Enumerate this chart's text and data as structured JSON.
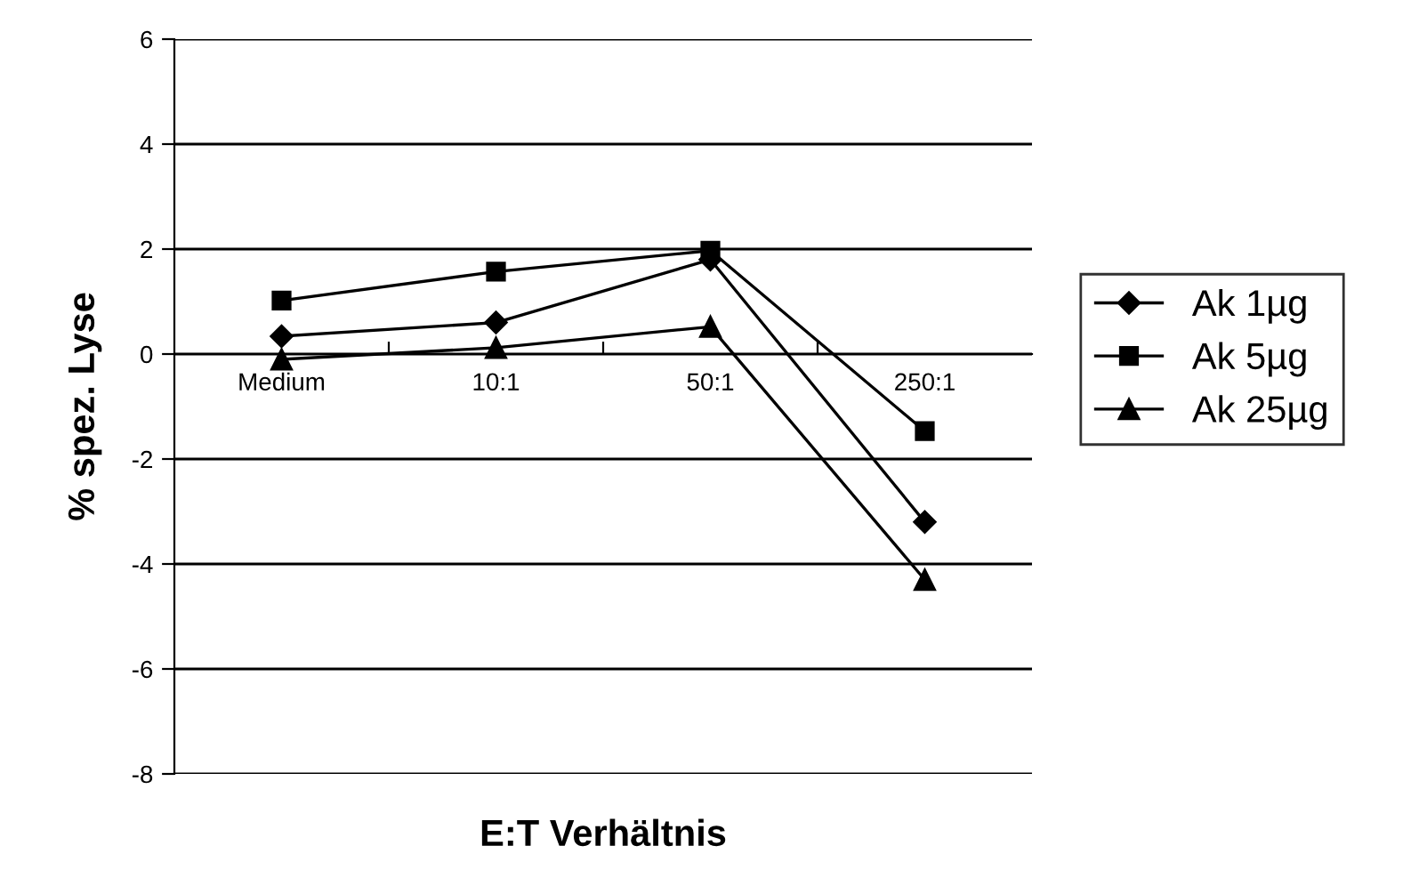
{
  "chart_data": {
    "type": "line",
    "xlabel": "E:T Verhältnis",
    "ylabel": "% spez. Lyse",
    "categories": [
      "Medium",
      "10:1",
      "50:1",
      "250:1"
    ],
    "series": [
      {
        "name": "Ak 1µg",
        "color": "#000000",
        "marker": "diamond",
        "values": [
          0.34,
          0.6,
          1.8,
          -3.2
        ]
      },
      {
        "name": "Ak 5µg",
        "color": "#000000",
        "marker": "square",
        "values": [
          1.02,
          1.57,
          1.97,
          -1.47
        ]
      },
      {
        "name": "Ak 25µg",
        "color": "#000000",
        "marker": "triangle",
        "values": [
          -0.1,
          0.12,
          0.52,
          -4.3
        ]
      }
    ],
    "ylim": [
      -8,
      6
    ],
    "yticks": [
      -8,
      -6,
      -4,
      -2,
      0,
      2,
      4,
      6
    ],
    "grid": "y",
    "legend": "right",
    "line_style": "solid"
  }
}
